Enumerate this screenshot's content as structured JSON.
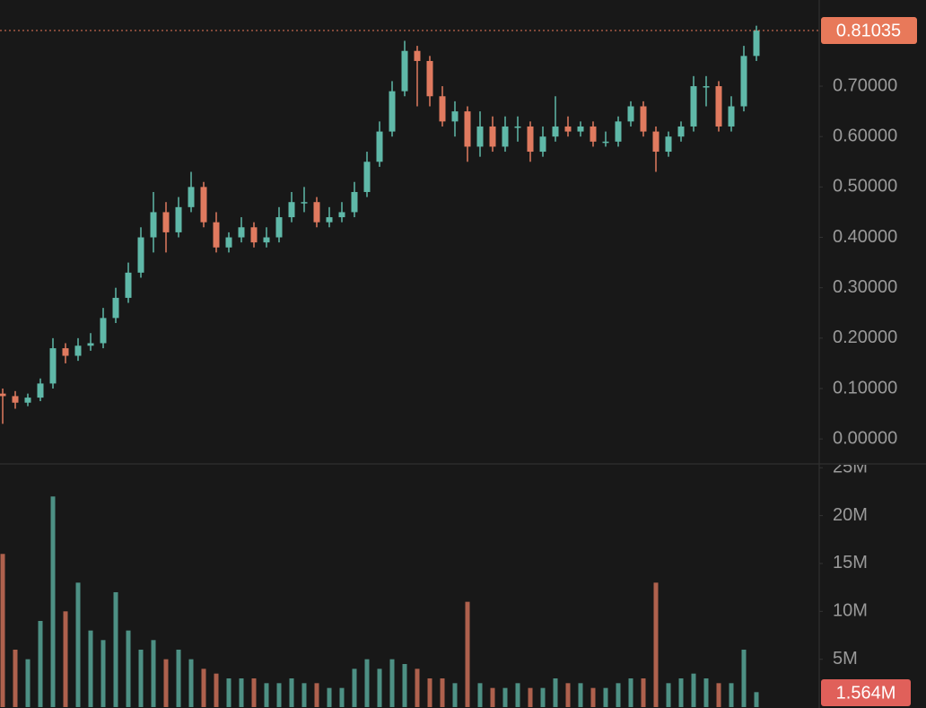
{
  "chart_data": {
    "type": "candlestick",
    "up_color": "#5fb8a8",
    "down_color": "#e07a5f",
    "open": [
      0.09,
      0.085,
      0.072,
      0.082,
      0.11,
      0.18,
      0.165,
      0.185,
      0.19,
      0.24,
      0.28,
      0.33,
      0.4,
      0.45,
      0.41,
      0.46,
      0.5,
      0.43,
      0.38,
      0.4,
      0.42,
      0.39,
      0.4,
      0.44,
      0.47,
      0.47,
      0.43,
      0.44,
      0.45,
      0.49,
      0.55,
      0.61,
      0.69,
      0.77,
      0.75,
      0.68,
      0.63,
      0.65,
      0.58,
      0.62,
      0.58,
      0.62,
      0.62,
      0.57,
      0.6,
      0.62,
      0.61,
      0.62,
      0.59,
      0.59,
      0.63,
      0.66,
      0.61,
      0.57,
      0.6,
      0.62,
      0.7,
      0.7,
      0.62,
      0.66,
      0.76
    ],
    "high": [
      0.1,
      0.095,
      0.09,
      0.12,
      0.2,
      0.19,
      0.2,
      0.21,
      0.26,
      0.3,
      0.35,
      0.42,
      0.49,
      0.47,
      0.48,
      0.53,
      0.51,
      0.45,
      0.41,
      0.44,
      0.43,
      0.42,
      0.46,
      0.49,
      0.5,
      0.48,
      0.46,
      0.47,
      0.51,
      0.57,
      0.63,
      0.71,
      0.79,
      0.78,
      0.76,
      0.7,
      0.67,
      0.66,
      0.65,
      0.64,
      0.64,
      0.64,
      0.63,
      0.62,
      0.68,
      0.64,
      0.63,
      0.63,
      0.61,
      0.64,
      0.67,
      0.67,
      0.62,
      0.61,
      0.63,
      0.72,
      0.72,
      0.71,
      0.68,
      0.78,
      0.82
    ],
    "low": [
      0.03,
      0.06,
      0.065,
      0.075,
      0.1,
      0.15,
      0.155,
      0.175,
      0.18,
      0.23,
      0.27,
      0.32,
      0.37,
      0.37,
      0.4,
      0.45,
      0.42,
      0.37,
      0.37,
      0.39,
      0.38,
      0.38,
      0.39,
      0.43,
      0.45,
      0.42,
      0.42,
      0.43,
      0.44,
      0.48,
      0.54,
      0.6,
      0.68,
      0.66,
      0.66,
      0.62,
      0.6,
      0.55,
      0.56,
      0.57,
      0.57,
      0.59,
      0.55,
      0.56,
      0.59,
      0.6,
      0.6,
      0.58,
      0.58,
      0.58,
      0.62,
      0.6,
      0.53,
      0.56,
      0.59,
      0.61,
      0.66,
      0.61,
      0.61,
      0.65,
      0.75
    ],
    "close": [
      0.085,
      0.072,
      0.082,
      0.11,
      0.18,
      0.165,
      0.185,
      0.19,
      0.24,
      0.28,
      0.33,
      0.4,
      0.45,
      0.41,
      0.46,
      0.5,
      0.43,
      0.38,
      0.4,
      0.42,
      0.39,
      0.4,
      0.44,
      0.47,
      0.47,
      0.43,
      0.44,
      0.45,
      0.49,
      0.55,
      0.61,
      0.69,
      0.77,
      0.75,
      0.68,
      0.63,
      0.65,
      0.58,
      0.62,
      0.58,
      0.62,
      0.62,
      0.57,
      0.6,
      0.62,
      0.61,
      0.62,
      0.59,
      0.59,
      0.63,
      0.66,
      0.61,
      0.57,
      0.6,
      0.62,
      0.7,
      0.7,
      0.62,
      0.66,
      0.76,
      0.81035
    ],
    "volume": [
      16000000,
      6000000,
      5000000,
      9000000,
      22000000,
      10000000,
      13000000,
      8000000,
      7000000,
      12000000,
      8000000,
      6000000,
      7000000,
      5000000,
      6000000,
      5000000,
      4000000,
      3500000,
      3000000,
      3000000,
      3000000,
      2500000,
      2500000,
      3000000,
      2500000,
      2500000,
      2000000,
      2000000,
      4000000,
      5000000,
      4000000,
      5000000,
      4500000,
      4000000,
      3000000,
      3000000,
      2500000,
      11000000,
      2500000,
      2000000,
      2000000,
      2500000,
      2000000,
      2000000,
      3000000,
      2500000,
      2500000,
      2000000,
      2000000,
      2500000,
      3000000,
      3000000,
      13000000,
      2500000,
      3000000,
      3500000,
      3000000,
      2500000,
      2500000,
      6000000,
      1564000
    ],
    "ylim": [
      -0.046,
      0.871
    ],
    "yticks": [
      {
        "value": 0,
        "label": "0.00000"
      },
      {
        "value": 0.1,
        "label": "0.10000"
      },
      {
        "value": 0.2,
        "label": "0.20000"
      },
      {
        "value": 0.3,
        "label": "0.30000"
      },
      {
        "value": 0.4,
        "label": "0.40000"
      },
      {
        "value": 0.5,
        "label": "0.50000"
      },
      {
        "value": 0.6,
        "label": "0.60000"
      },
      {
        "value": 0.7,
        "label": "0.70000"
      }
    ],
    "volume_ylim": [
      0,
      25400000
    ],
    "volume_yticks": [
      {
        "value": 5000000,
        "label": "5M"
      },
      {
        "value": 10000000,
        "label": "10M"
      },
      {
        "value": 15000000,
        "label": "15M"
      },
      {
        "value": 20000000,
        "label": "20M"
      },
      {
        "value": 25000000,
        "label": "25M"
      }
    ],
    "last_price": 0.81035,
    "last_price_color": "#e8795a",
    "last_volume": {
      "value": 1564000,
      "label": "1.564M"
    },
    "last_volume_color": "#e0605a"
  }
}
